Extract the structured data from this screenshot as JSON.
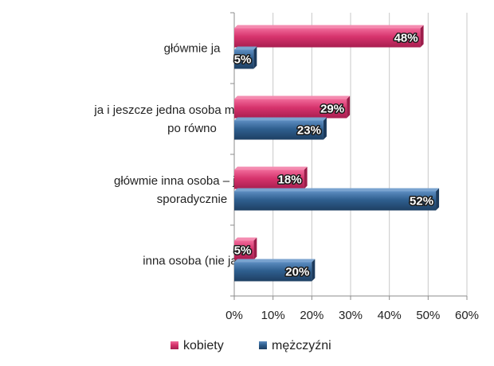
{
  "chart_data": {
    "type": "bar",
    "orientation": "horizontal",
    "categories": [
      [
        "główmie ja"
      ],
      [
        "ja i jeszcze jedna osoba mniej więcej",
        "po równo"
      ],
      [
        "główmie inna osoba – ja tylko",
        "sporadycznie"
      ],
      [
        "inna osoba (nie ja)"
      ]
    ],
    "series": [
      {
        "name": "kobiety",
        "values": [
          48,
          29,
          18,
          5
        ],
        "labels": [
          "48%",
          "29%",
          "18%",
          "5%"
        ],
        "color": "#d6336c"
      },
      {
        "name": "mężczyźni",
        "values": [
          5,
          23,
          52,
          20
        ],
        "labels": [
          "5%",
          "23%",
          "52%",
          "20%"
        ],
        "color": "#2f5f8f"
      }
    ],
    "x_ticks": [
      "0%",
      "10%",
      "20%",
      "30%",
      "40%",
      "50%",
      "60%"
    ],
    "xlim": [
      0,
      60
    ],
    "grid": true,
    "legend_position": "bottom"
  }
}
